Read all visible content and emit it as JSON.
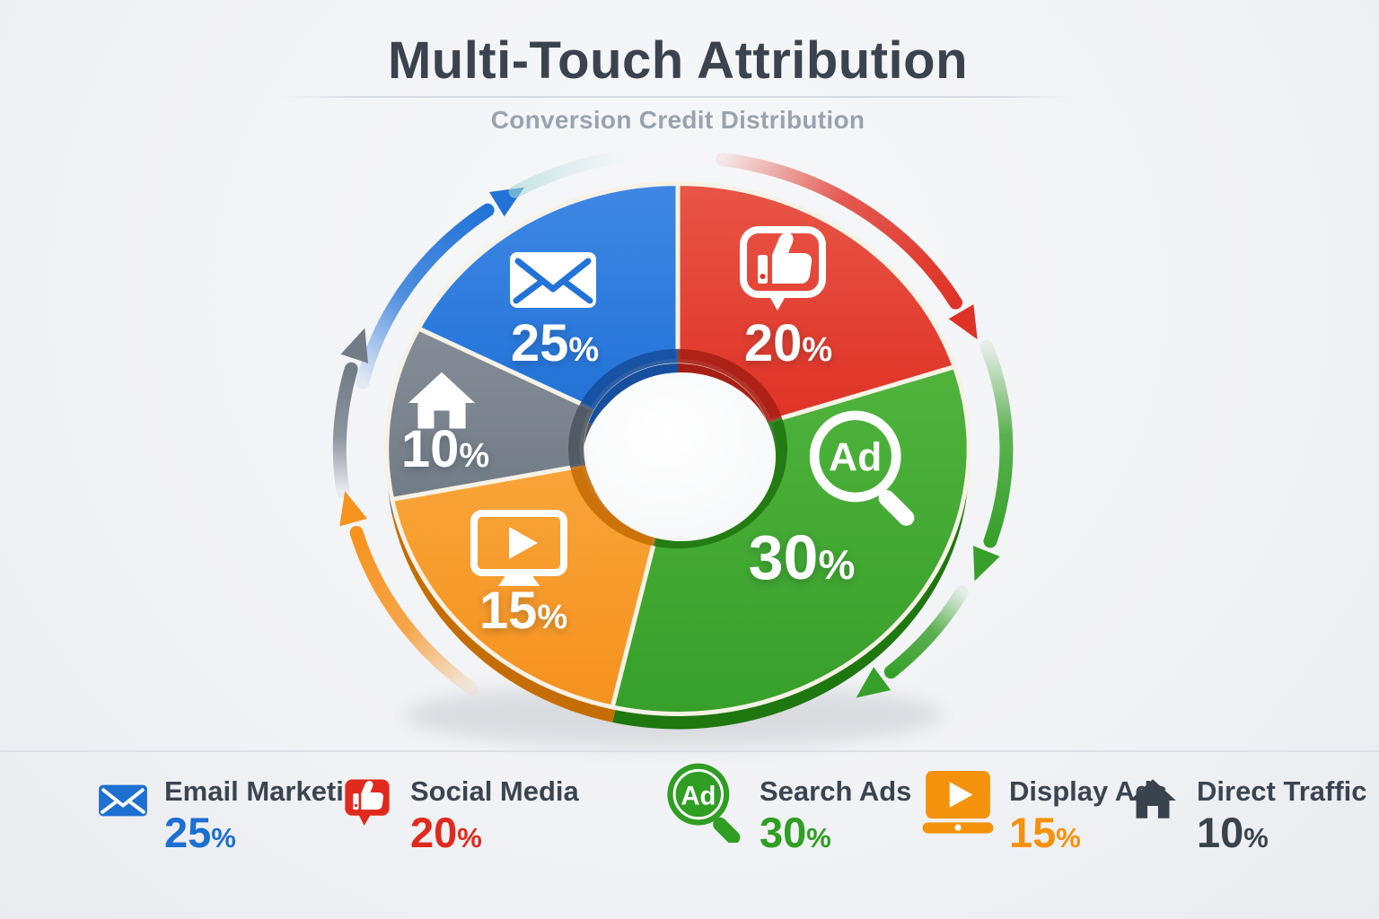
{
  "header": {
    "title": "Multi-Touch Attribution",
    "subtitle": "Conversion Credit Distribution"
  },
  "chart_data": {
    "type": "pie",
    "variant": "3d-donut-cycle",
    "title": "Multi-Touch Attribution",
    "subtitle": "Conversion Credit Distribution",
    "unit": "%",
    "legend_position": "bottom",
    "order_clockwise_from_top": [
      "Social Media",
      "Search Ads",
      "Display Ads",
      "Direct Traffic",
      "Email Marketing"
    ],
    "segments": [
      {
        "label": "Email Marketing",
        "value": 25,
        "pct_label": "25",
        "icon": "email-icon",
        "color": "#2273d8",
        "light": "#3f87e4",
        "dark": "#164f9e",
        "legend_color": "#1d6fd1"
      },
      {
        "label": "Social Media",
        "value": 20,
        "pct_label": "20",
        "icon": "thumbs-up-icon",
        "color": "#df3226",
        "light": "#e85546",
        "dark": "#a81f15",
        "legend_color": "#e02a1d"
      },
      {
        "label": "Search Ads",
        "value": 30,
        "pct_label": "30",
        "icon": "ad-search-icon",
        "icon_text": "Ad",
        "color": "#37a02a",
        "light": "#4fb33c",
        "dark": "#1f7710",
        "legend_color": "#2f9e23"
      },
      {
        "label": "Display Ads",
        "value": 15,
        "pct_label": "15",
        "icon": "display-play-icon",
        "color": "#f6921e",
        "light": "#f8a439",
        "dark": "#c56d05",
        "legend_color": "#f5920b"
      },
      {
        "label": "Direct Traffic",
        "value": 10,
        "pct_label": "10",
        "icon": "house-icon",
        "color": "#727c87",
        "light": "#848d97",
        "dark": "#4e565f",
        "legend_color": "#39434e"
      }
    ]
  }
}
